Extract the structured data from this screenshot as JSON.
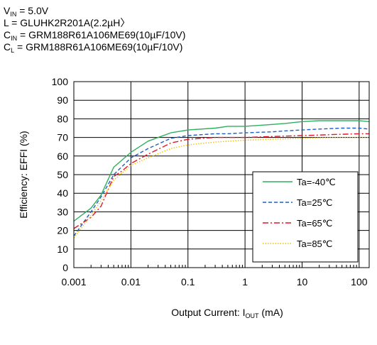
{
  "conditions": [
    {
      "main": "V",
      "sub": "IN",
      "rest": " = 5.0V"
    },
    {
      "main": "L = GLUHK2R201A(2.2µH〉",
      "sub": "",
      "rest": ""
    },
    {
      "main": "C",
      "sub": "IN",
      "rest": " = GRM188R61A106ME69(10µF/10V)"
    },
    {
      "main": "C",
      "sub": "L",
      "rest": " = GRM188R61A106ME69(10µF/10V)"
    }
  ],
  "chart_data": {
    "type": "line",
    "xscale": "log",
    "xlim": [
      0.001,
      150
    ],
    "ylim": [
      0,
      100
    ],
    "xticks": [
      0.001,
      0.01,
      0.1,
      1,
      10,
      100
    ],
    "xtick_labels": [
      "0.001",
      "0.01",
      "0.1",
      "1",
      "10",
      "100"
    ],
    "yticks": [
      0,
      10,
      20,
      30,
      40,
      50,
      60,
      70,
      80,
      90,
      100
    ],
    "ylabel": "Efficiency: EFFI  (%)",
    "xlabel": {
      "main": "Output Current: I",
      "sub": "OUT",
      "rest": " (mA)"
    },
    "grid": true,
    "legend_position": "bottom-right",
    "series": [
      {
        "name": "Ta=-40℃",
        "color": "#2EAF5E",
        "dash": "solid",
        "x": [
          0.001,
          0.002,
          0.003,
          0.005,
          0.01,
          0.02,
          0.05,
          0.1,
          0.3,
          0.5,
          1,
          3,
          5,
          10,
          20,
          50,
          100,
          150
        ],
        "y": [
          25,
          32,
          39,
          54,
          62,
          68,
          72.5,
          74,
          75,
          76,
          76,
          77,
          77.5,
          78.5,
          79,
          79,
          79,
          78.5
        ]
      },
      {
        "name": "Ta=25℃",
        "color": "#1F5FBF",
        "dash": "dashed",
        "x": [
          0.001,
          0.002,
          0.003,
          0.005,
          0.01,
          0.02,
          0.05,
          0.1,
          0.3,
          0.5,
          1,
          3,
          5,
          10,
          20,
          50,
          100,
          150
        ],
        "y": [
          17,
          30,
          38,
          50,
          59,
          64,
          69.5,
          71,
          72,
          72,
          72.5,
          73,
          73.5,
          74,
          74.5,
          75,
          75,
          74.5
        ]
      },
      {
        "name": "Ta=65℃",
        "color": "#E0192B",
        "dash": "dashdot",
        "x": [
          0.001,
          0.002,
          0.003,
          0.005,
          0.007,
          0.01,
          0.02,
          0.05,
          0.1,
          0.3,
          1,
          3,
          10,
          30,
          100,
          150
        ],
        "y": [
          21,
          27,
          33,
          49,
          52,
          56,
          61,
          67,
          69,
          70,
          70,
          70.5,
          71,
          71.5,
          72,
          72
        ]
      },
      {
        "name": "Ta=85℃",
        "color": "#F2C200",
        "dash": "dotted",
        "x": [
          0.001,
          0.002,
          0.003,
          0.005,
          0.01,
          0.02,
          0.05,
          0.1,
          0.3,
          1,
          3,
          10,
          30,
          100,
          150
        ],
        "y": [
          16,
          28,
          36,
          47,
          55,
          59,
          64,
          66,
          67.5,
          68.5,
          69,
          69.5,
          70,
          70,
          70
        ]
      }
    ]
  }
}
